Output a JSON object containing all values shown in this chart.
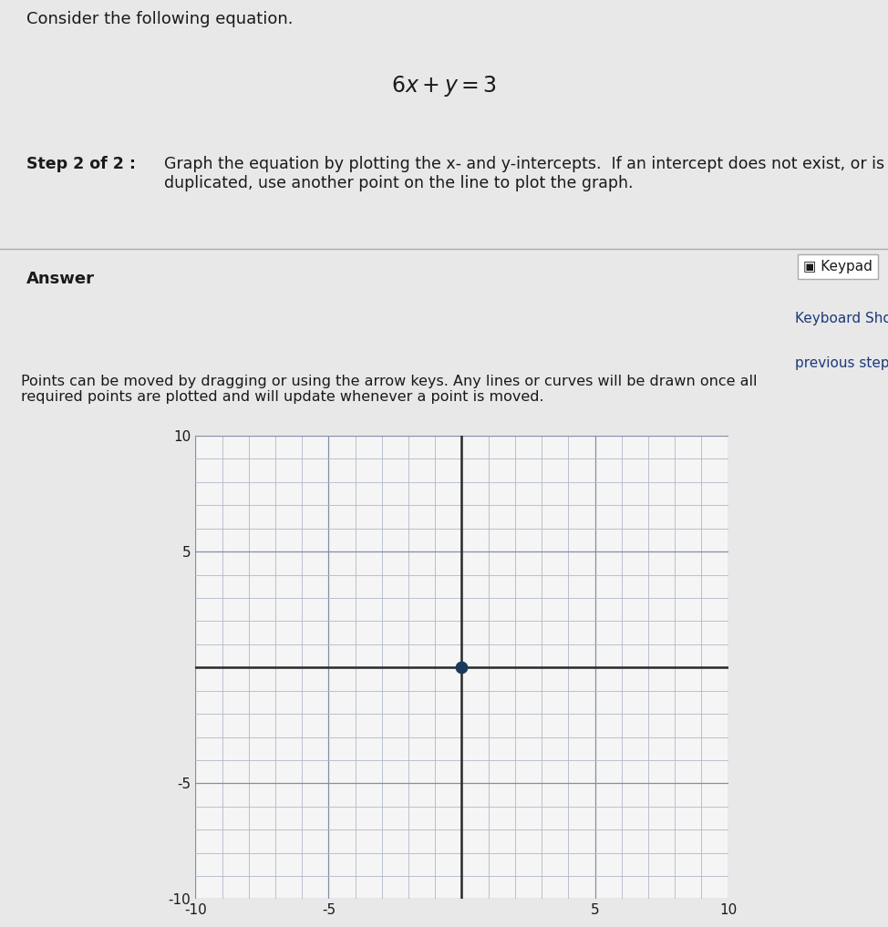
{
  "bg_color": "#e8e8e8",
  "graph_bg_color": "#f5f5f5",
  "title_text": "Consider the following equation.",
  "equation": "$6x + y = 3$",
  "step_bold": "Step 2 of 2 : ",
  "step_normal": "Graph the equation by plotting the x- and y-intercepts.  If an intercept does not exist, or is\nduplicated, use another point on the line to plot the graph.",
  "answer_text": "Answer",
  "keypad_text": "▣ Keypad",
  "keyboard_text": "Keyboard Shortcut",
  "prev_text": "previous step answ",
  "points_text": "Points can be moved by dragging or using the arrow keys. Any lines or curves will be drawn once all\nrequired points are plotted and will update whenever a point is moved.",
  "xmin": -10,
  "xmax": 10,
  "ymin": -10,
  "ymax": 10,
  "tick_step": 5,
  "grid_minor_step": 1,
  "point_x": 0,
  "point_y": 0,
  "point_color": "#1a3a5c",
  "point_size": 80,
  "axis_color": "#2a2a2a",
  "grid_color": "#b0b8c8",
  "grid_major_color": "#8090a8"
}
